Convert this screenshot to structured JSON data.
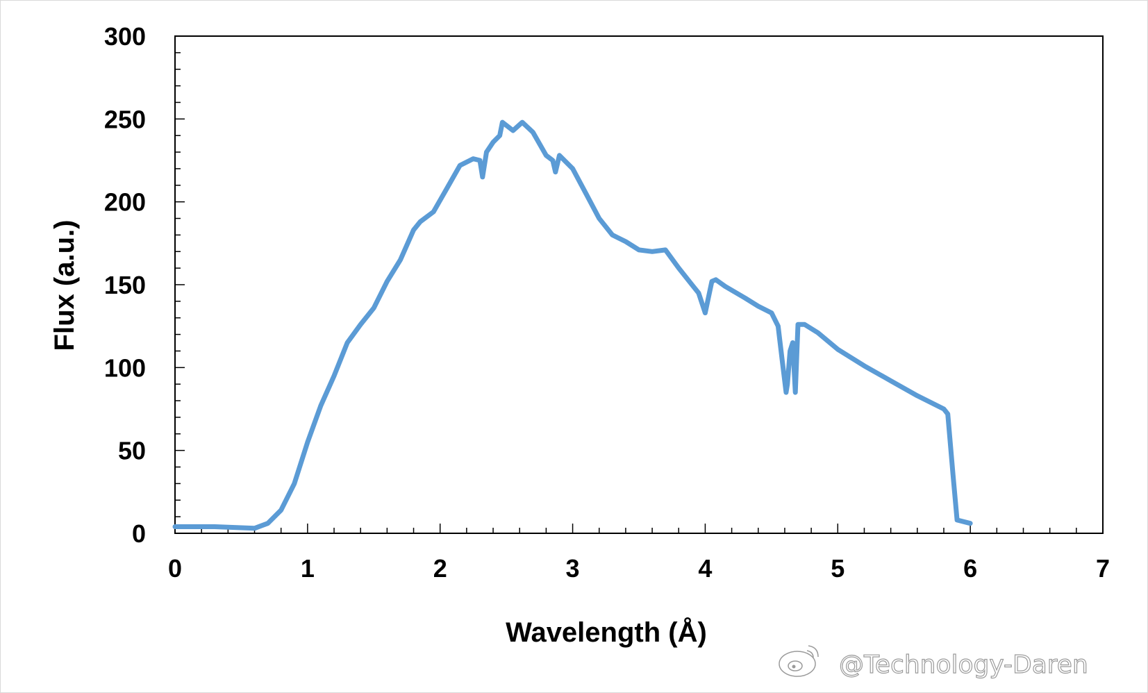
{
  "chart_data": {
    "type": "line",
    "title": "",
    "xlabel": "Wavelength (Å)",
    "ylabel": "Flux (a.u.)",
    "xlim": [
      0,
      7
    ],
    "ylim": [
      0,
      300
    ],
    "x_ticks": [
      "0",
      "1",
      "2",
      "3",
      "4",
      "5",
      "6",
      "7"
    ],
    "y_ticks": [
      "0",
      "50",
      "100",
      "150",
      "200",
      "250",
      "300"
    ],
    "x_tick_values": [
      0,
      1,
      2,
      3,
      4,
      5,
      6,
      7
    ],
    "y_tick_values": [
      0,
      50,
      100,
      150,
      200,
      250,
      300
    ],
    "grid": false,
    "legend": "none",
    "series_color": "#5b9bd5",
    "series": [
      {
        "x": [
          0.0,
          0.3,
          0.6,
          0.7,
          0.8,
          0.9,
          1.0,
          1.1,
          1.2,
          1.3,
          1.4,
          1.5,
          1.6,
          1.7,
          1.8,
          1.85,
          1.95,
          2.05,
          2.15,
          2.25,
          2.3,
          2.32,
          2.35,
          2.4,
          2.45,
          2.47,
          2.55,
          2.62,
          2.7,
          2.8,
          2.85,
          2.87,
          2.9,
          3.0,
          3.1,
          3.2,
          3.3,
          3.4,
          3.5,
          3.6,
          3.7,
          3.8,
          3.9,
          3.95,
          4.0,
          4.05,
          4.08,
          4.15,
          4.3,
          4.4,
          4.5,
          4.55,
          4.58,
          4.61,
          4.62,
          4.64,
          4.66,
          4.68,
          4.7,
          4.75,
          4.85,
          5.0,
          5.2,
          5.4,
          5.6,
          5.8,
          5.83,
          5.87,
          5.9,
          6.0
        ],
        "y": [
          4,
          4,
          3,
          6,
          14,
          30,
          55,
          77,
          95,
          115,
          126,
          136,
          152,
          165,
          183,
          188,
          194,
          208,
          222,
          226,
          225,
          215,
          230,
          236,
          240,
          248,
          243,
          248,
          242,
          228,
          225,
          218,
          228,
          220,
          205,
          190,
          180,
          176,
          171,
          170,
          171,
          160,
          150,
          145,
          133,
          152,
          153,
          149,
          142,
          137,
          133,
          125,
          105,
          85,
          90,
          110,
          115,
          85,
          126,
          126,
          121,
          111,
          101,
          92,
          83,
          75,
          72,
          35,
          8,
          6
        ]
      }
    ]
  },
  "watermark": {
    "text": "@Technology-Daren",
    "icon": "weibo-logo-icon"
  }
}
